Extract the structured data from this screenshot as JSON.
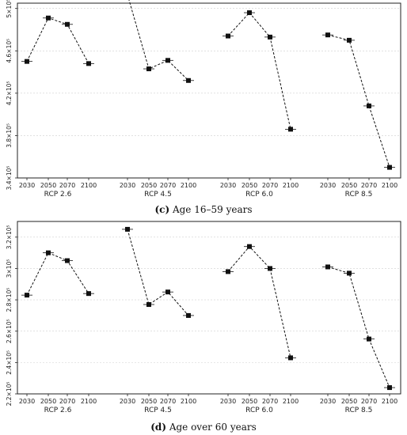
{
  "captions": [
    {
      "letter": "(c)",
      "text": " Age 16–59 years"
    },
    {
      "letter": "(d)",
      "text": " Age over 60 years"
    }
  ],
  "chart_data": [
    {
      "type": "scatter",
      "title": "",
      "xlabel": "",
      "ylabel": "",
      "groups": [
        "RCP 2.6",
        "RCP 4.5",
        "RCP 6.0",
        "RCP 8.5"
      ],
      "x": [
        "2030",
        "2050",
        "2070",
        "2100"
      ],
      "ylim": [
        3.4,
        5.05
      ],
      "yticks": [
        3.4,
        3.8,
        4.2,
        4.6,
        5.0
      ],
      "ytick_labels": [
        "3.4×10⁵",
        "3.8×10⁵",
        "4.2×10⁵",
        "4.6×10⁵",
        "5×10⁵"
      ],
      "grid": true,
      "series": [
        {
          "group": "RCP 2.6",
          "values": [
            4.5,
            4.91,
            4.85,
            4.48
          ]
        },
        {
          "group": "RCP 4.5",
          "values": [
            5.13,
            4.43,
            4.51,
            4.32
          ]
        },
        {
          "group": "RCP 6.0",
          "values": [
            4.74,
            4.96,
            4.73,
            3.86
          ]
        },
        {
          "group": "RCP 8.5",
          "values": [
            4.75,
            4.7,
            4.08,
            3.5
          ]
        }
      ]
    },
    {
      "type": "scatter",
      "title": "",
      "xlabel": "",
      "ylabel": "",
      "groups": [
        "RCP 2.6",
        "RCP 4.5",
        "RCP 6.0",
        "RCP 8.5"
      ],
      "x": [
        "2030",
        "2050",
        "2070",
        "2100"
      ],
      "ylim": [
        2.2,
        3.3
      ],
      "yticks": [
        2.2,
        2.4,
        2.6,
        2.8,
        3.0,
        3.2
      ],
      "ytick_labels": [
        "2.2×10⁵",
        "2.4×10⁵",
        "2.6×10⁵",
        "2.8×10⁵",
        "3×10⁵",
        "3.2×10⁵"
      ],
      "grid": true,
      "series": [
        {
          "group": "RCP 2.6",
          "values": [
            2.83,
            3.1,
            3.05,
            2.84
          ]
        },
        {
          "group": "RCP 4.5",
          "values": [
            3.25,
            2.77,
            2.85,
            2.7
          ]
        },
        {
          "group": "RCP 6.0",
          "values": [
            2.98,
            3.14,
            3.0,
            2.43
          ]
        },
        {
          "group": "RCP 8.5",
          "values": [
            3.01,
            2.97,
            2.55,
            2.24
          ]
        }
      ]
    }
  ]
}
